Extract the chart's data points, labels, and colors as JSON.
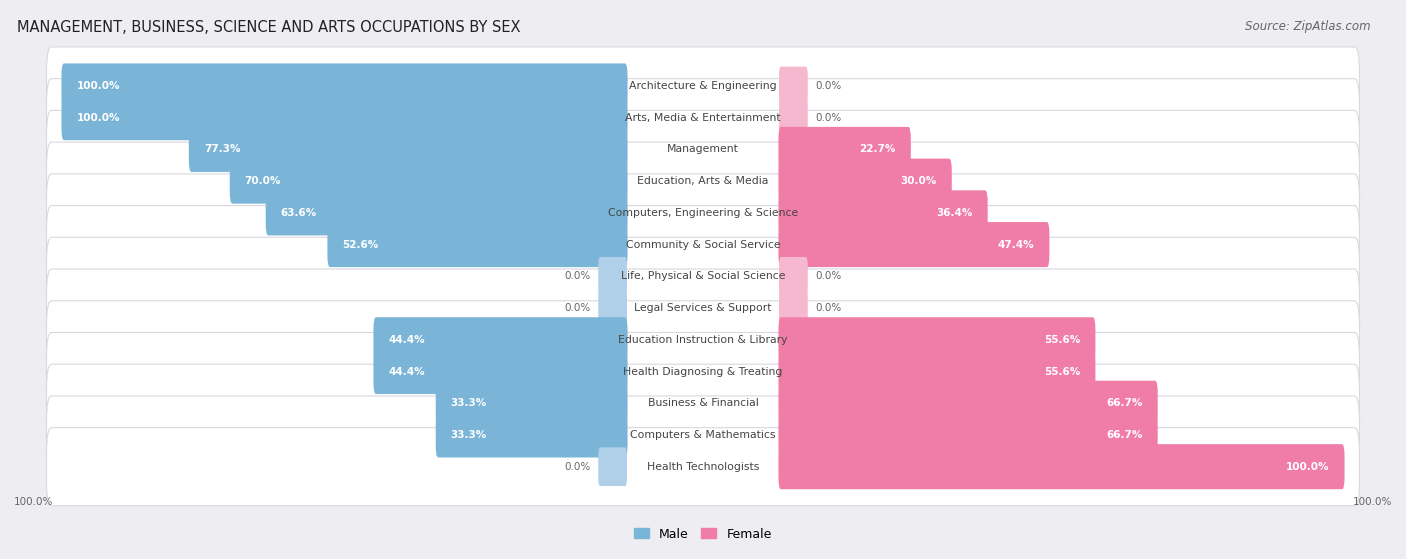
{
  "title": "MANAGEMENT, BUSINESS, SCIENCE AND ARTS OCCUPATIONS BY SEX",
  "source": "Source: ZipAtlas.com",
  "categories": [
    "Architecture & Engineering",
    "Arts, Media & Entertainment",
    "Management",
    "Education, Arts & Media",
    "Computers, Engineering & Science",
    "Community & Social Service",
    "Life, Physical & Social Science",
    "Legal Services & Support",
    "Education Instruction & Library",
    "Health Diagnosing & Treating",
    "Business & Financial",
    "Computers & Mathematics",
    "Health Technologists"
  ],
  "male": [
    100.0,
    100.0,
    77.3,
    70.0,
    63.6,
    52.6,
    0.0,
    0.0,
    44.4,
    44.4,
    33.3,
    33.3,
    0.0
  ],
  "female": [
    0.0,
    0.0,
    22.7,
    30.0,
    36.4,
    47.4,
    0.0,
    0.0,
    55.6,
    55.6,
    66.7,
    66.7,
    100.0
  ],
  "male_color": "#7ab5d8",
  "female_color": "#f07ca8",
  "male_color_zero": "#b0cfe8",
  "female_color_zero": "#f5b8ce",
  "bg_color": "#ededf2",
  "row_bg_color": "#ffffff",
  "row_border_color": "#d8d8e0",
  "label_color": "#444444",
  "pct_color": "#666666"
}
